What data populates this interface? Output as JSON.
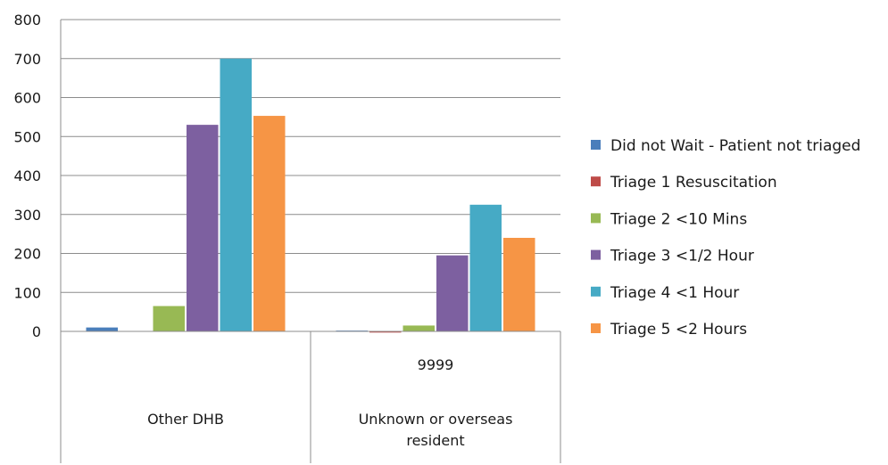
{
  "chart_data": {
    "type": "bar",
    "categories": [
      {
        "lines": [
          "Other DHB"
        ],
        "sublabel": ""
      },
      {
        "lines": [
          "Unknown or overseas",
          "resident"
        ],
        "sublabel": "9999"
      }
    ],
    "series": [
      {
        "name": "Did not Wait - Patient not triaged",
        "color": "#4a7ebb",
        "values": [
          10,
          2
        ]
      },
      {
        "name": "Triage 1 Resuscitation",
        "color": "#be4b48",
        "values": [
          0,
          -3
        ]
      },
      {
        "name": "Triage 2 <10 Mins",
        "color": "#98b954",
        "values": [
          65,
          15
        ]
      },
      {
        "name": "Triage 3 <1/2 Hour",
        "color": "#7d60a0",
        "values": [
          530,
          195
        ]
      },
      {
        "name": "Triage 4 <1 Hour",
        "color": "#46aac5",
        "values": [
          700,
          325
        ]
      },
      {
        "name": "Triage 5 <2 Hours",
        "color": "#f69545",
        "values": [
          553,
          240
        ]
      }
    ],
    "ylim": [
      0,
      800
    ],
    "yticks": [
      0,
      100,
      200,
      300,
      400,
      500,
      600,
      700,
      800
    ],
    "grid": true,
    "legend": "right",
    "title": "",
    "xlabel": "",
    "ylabel": ""
  }
}
